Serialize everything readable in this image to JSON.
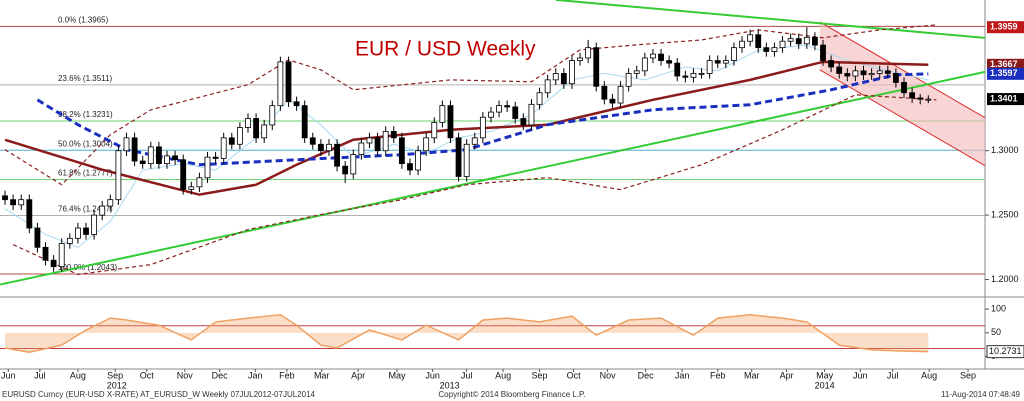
{
  "chart_data": {
    "type": "candlestick",
    "title": "EUR / USD Weekly",
    "xlim": [
      -0.62,
      121
    ],
    "ylim": [
      1.188,
      1.417
    ],
    "xticks": [
      {
        "value": 0.4,
        "label": "Jun"
      },
      {
        "value": 4.3,
        "label": "Jul"
      },
      {
        "value": 9.0,
        "label": "Aug"
      },
      {
        "value": 13.6,
        "label": "Sep"
      },
      {
        "value": 17.5,
        "label": "Oct"
      },
      {
        "value": 22.2,
        "label": "Nov"
      },
      {
        "value": 26.5,
        "label": "Dec"
      },
      {
        "value": 30.9,
        "label": "Jan"
      },
      {
        "value": 34.8,
        "label": "Feb"
      },
      {
        "value": 39.1,
        "label": "Mar"
      },
      {
        "value": 43.6,
        "label": "Apr"
      },
      {
        "value": 48.4,
        "label": "May"
      },
      {
        "value": 52.8,
        "label": "Jun"
      },
      {
        "value": 57.0,
        "label": "Jul"
      },
      {
        "value": 61.5,
        "label": "Aug"
      },
      {
        "value": 66.0,
        "label": "Sep"
      },
      {
        "value": 70.2,
        "label": "Oct"
      },
      {
        "value": 74.4,
        "label": "Nov"
      },
      {
        "value": 79.1,
        "label": "Dec"
      },
      {
        "value": 83.6,
        "label": "Jan"
      },
      {
        "value": 88.0,
        "label": "Feb"
      },
      {
        "value": 92.2,
        "label": "Mar"
      },
      {
        "value": 96.5,
        "label": "Apr"
      },
      {
        "value": 101.2,
        "label": "May"
      },
      {
        "value": 105.6,
        "label": "Jun"
      },
      {
        "value": 109.6,
        "label": "Jul"
      },
      {
        "value": 114.1,
        "label": "Aug"
      },
      {
        "value": 118.9,
        "label": "Sep"
      }
    ],
    "year_ticks": [
      {
        "value": 13.8,
        "label": "2012"
      },
      {
        "value": 54.9,
        "label": "2013"
      },
      {
        "value": 101.2,
        "label": "2014"
      }
    ],
    "yticks": [
      {
        "value": 1.2,
        "label": "1.2000"
      },
      {
        "value": 1.25,
        "label": "1.2500"
      },
      {
        "value": 1.3,
        "label": "1.3000"
      }
    ],
    "up_color": "#ffffff",
    "down_color": "#000000",
    "open": [
      1.265,
      1.262,
      1.258,
      1.262,
      1.24,
      1.225,
      1.215,
      1.21,
      1.228,
      1.232,
      1.24,
      1.235,
      1.25,
      1.257,
      1.262,
      1.3,
      1.31,
      1.292,
      1.29,
      1.303,
      1.29,
      1.296,
      1.293,
      1.27,
      1.272,
      1.279,
      1.295,
      1.294,
      1.31,
      1.305,
      1.318,
      1.325,
      1.31,
      1.32,
      1.335,
      1.369,
      1.338,
      1.335,
      1.31,
      1.305,
      1.3,
      1.305,
      1.288,
      1.282,
      1.297,
      1.306,
      1.31,
      1.3,
      1.315,
      1.31,
      1.29,
      1.285,
      1.3,
      1.31,
      1.322,
      1.335,
      1.31,
      1.28,
      1.305,
      1.31,
      1.326,
      1.33,
      1.335,
      1.334,
      1.325,
      1.32,
      1.336,
      1.345,
      1.355,
      1.36,
      1.352,
      1.37,
      1.372,
      1.38,
      1.35,
      1.34,
      1.337,
      1.35,
      1.36,
      1.362,
      1.372,
      1.375,
      1.37,
      1.368,
      1.358,
      1.357,
      1.36,
      1.36,
      1.37,
      1.368,
      1.37,
      1.38,
      1.385,
      1.39,
      1.38,
      1.377,
      1.38,
      1.385,
      1.387,
      1.383,
      1.388,
      1.382,
      1.37,
      1.365,
      1.36,
      1.358,
      1.362,
      1.359,
      1.36,
      1.362,
      1.36,
      1.353,
      1.345,
      1.341,
      1.34
    ],
    "high": [
      1.269,
      1.266,
      1.266,
      1.266,
      1.244,
      1.229,
      1.219,
      1.232,
      1.236,
      1.244,
      1.244,
      1.254,
      1.261,
      1.266,
      1.304,
      1.314,
      1.314,
      1.296,
      1.307,
      1.307,
      1.3,
      1.3,
      1.297,
      1.276,
      1.283,
      1.299,
      1.299,
      1.314,
      1.314,
      1.322,
      1.329,
      1.329,
      1.324,
      1.339,
      1.373,
      1.373,
      1.342,
      1.339,
      1.314,
      1.309,
      1.309,
      1.309,
      1.292,
      1.301,
      1.31,
      1.314,
      1.314,
      1.319,
      1.319,
      1.314,
      1.294,
      1.304,
      1.314,
      1.326,
      1.339,
      1.339,
      1.314,
      1.309,
      1.314,
      1.33,
      1.334,
      1.339,
      1.339,
      1.338,
      1.329,
      1.34,
      1.349,
      1.359,
      1.364,
      1.364,
      1.374,
      1.376,
      1.386,
      1.384,
      1.354,
      1.344,
      1.354,
      1.364,
      1.366,
      1.376,
      1.379,
      1.379,
      1.374,
      1.372,
      1.362,
      1.364,
      1.364,
      1.374,
      1.374,
      1.374,
      1.384,
      1.389,
      1.394,
      1.394,
      1.384,
      1.384,
      1.389,
      1.391,
      1.391,
      1.396,
      1.392,
      1.386,
      1.374,
      1.369,
      1.364,
      1.366,
      1.366,
      1.364,
      1.366,
      1.366,
      1.364,
      1.357,
      1.349,
      1.344,
      1.343
    ],
    "low": [
      1.258,
      1.254,
      1.254,
      1.236,
      1.221,
      1.211,
      1.206,
      1.206,
      1.224,
      1.228,
      1.231,
      1.231,
      1.246,
      1.253,
      1.258,
      1.296,
      1.288,
      1.286,
      1.286,
      1.286,
      1.286,
      1.289,
      1.266,
      1.266,
      1.268,
      1.275,
      1.29,
      1.29,
      1.301,
      1.301,
      1.314,
      1.306,
      1.306,
      1.316,
      1.331,
      1.334,
      1.331,
      1.306,
      1.301,
      1.296,
      1.296,
      1.284,
      1.275,
      1.278,
      1.293,
      1.302,
      1.296,
      1.296,
      1.306,
      1.286,
      1.281,
      1.281,
      1.296,
      1.306,
      1.318,
      1.306,
      1.276,
      1.276,
      1.301,
      1.306,
      1.322,
      1.326,
      1.33,
      1.321,
      1.316,
      1.316,
      1.332,
      1.341,
      1.351,
      1.348,
      1.348,
      1.366,
      1.368,
      1.346,
      1.336,
      1.333,
      1.333,
      1.346,
      1.356,
      1.358,
      1.368,
      1.366,
      1.364,
      1.354,
      1.353,
      1.353,
      1.356,
      1.356,
      1.364,
      1.364,
      1.366,
      1.376,
      1.381,
      1.376,
      1.373,
      1.373,
      1.376,
      1.381,
      1.379,
      1.379,
      1.378,
      1.366,
      1.361,
      1.356,
      1.354,
      1.354,
      1.355,
      1.355,
      1.356,
      1.356,
      1.349,
      1.341,
      1.337,
      1.336,
      1.337
    ],
    "close": [
      1.262,
      1.258,
      1.262,
      1.24,
      1.225,
      1.215,
      1.21,
      1.228,
      1.232,
      1.24,
      1.235,
      1.25,
      1.257,
      1.262,
      1.3,
      1.31,
      1.292,
      1.29,
      1.303,
      1.29,
      1.296,
      1.293,
      1.27,
      1.272,
      1.279,
      1.295,
      1.294,
      1.31,
      1.305,
      1.318,
      1.325,
      1.31,
      1.32,
      1.335,
      1.369,
      1.338,
      1.335,
      1.31,
      1.305,
      1.3,
      1.305,
      1.288,
      1.282,
      1.297,
      1.306,
      1.31,
      1.3,
      1.315,
      1.31,
      1.29,
      1.285,
      1.3,
      1.31,
      1.322,
      1.335,
      1.31,
      1.28,
      1.305,
      1.31,
      1.326,
      1.33,
      1.335,
      1.334,
      1.325,
      1.32,
      1.336,
      1.345,
      1.355,
      1.36,
      1.352,
      1.37,
      1.372,
      1.38,
      1.35,
      1.34,
      1.337,
      1.35,
      1.36,
      1.362,
      1.372,
      1.375,
      1.37,
      1.368,
      1.358,
      1.357,
      1.36,
      1.36,
      1.37,
      1.368,
      1.37,
      1.38,
      1.385,
      1.39,
      1.38,
      1.377,
      1.38,
      1.385,
      1.387,
      1.383,
      1.388,
      1.382,
      1.37,
      1.365,
      1.36,
      1.358,
      1.362,
      1.359,
      1.36,
      1.362,
      1.36,
      1.353,
      1.345,
      1.341,
      1.34,
      1.34
    ],
    "fib_levels": [
      {
        "value": 1.3965,
        "label": "0.0% (1.3965)",
        "color": "#b04848"
      },
      {
        "value": 1.3511,
        "label": "23.6% (1.3511)",
        "color": "#b0b0b0"
      },
      {
        "value": 1.3231,
        "label": "38.2% (1.3231)",
        "color": "#6cd06c"
      },
      {
        "value": 1.3004,
        "label": "50.0% (1.3004)",
        "color": "#50b0d0"
      },
      {
        "value": 1.2777,
        "label": "61.8% (1.2777)",
        "color": "#6cd06c"
      },
      {
        "value": 1.2497,
        "label": "76.4% (1.2497)",
        "color": "#b0b0b0"
      },
      {
        "value": 1.2043,
        "label": "100.0% (1.2043)",
        "color": "#b04848"
      }
    ],
    "overlays": [
      {
        "color": "#a8d8f0",
        "style": "solid",
        "x": [
          0,
          5,
          9,
          13,
          17,
          22,
          26,
          31,
          35,
          39,
          43,
          48,
          52,
          56,
          60,
          65,
          70,
          74,
          79,
          84,
          88,
          93,
          99,
          104,
          109,
          114
        ],
        "values": [
          1.255,
          1.235,
          1.225,
          1.245,
          1.285,
          1.29,
          1.285,
          1.31,
          1.34,
          1.32,
          1.295,
          1.305,
          1.298,
          1.31,
          1.315,
          1.328,
          1.355,
          1.36,
          1.355,
          1.365,
          1.362,
          1.378,
          1.382,
          1.37,
          1.362,
          1.355
        ]
      },
      {
        "color": "#8b2020",
        "style": "dashed",
        "x": [
          0,
          7,
          13,
          18,
          30,
          35,
          39,
          43,
          55,
          65,
          71,
          78,
          86,
          93,
          101,
          108,
          115
        ],
        "values": [
          1.3008,
          1.2736,
          1.3124,
          1.3318,
          1.3512,
          1.3705,
          1.3628,
          1.3473,
          1.355,
          1.3535,
          1.3783,
          1.3822,
          1.386,
          1.3938,
          1.3877,
          1.3938,
          1.3977
        ]
      },
      {
        "color": "#8b2020",
        "style": "dashed",
        "x": [
          1,
          9,
          18,
          30,
          39,
          49,
          57,
          67,
          76,
          86,
          96,
          105,
          115
        ],
        "values": [
          1.2271,
          1.2039,
          1.2116,
          1.2388,
          1.2504,
          1.262,
          1.2736,
          1.2791,
          1.2698,
          1.2891,
          1.3163,
          1.3434,
          1.3395
        ]
      },
      {
        "color": "#8b1a1a",
        "style": "solid-thick",
        "x": [
          0,
          12,
          24,
          31,
          36,
          43,
          55,
          67,
          80,
          92,
          101,
          114
        ],
        "values": [
          1.3085,
          1.2853,
          1.2659,
          1.2736,
          1.2891,
          1.3085,
          1.3163,
          1.3202,
          1.3395,
          1.355,
          1.369,
          1.3667
        ]
      },
      {
        "color": "#1a2fc0",
        "style": "dashed-thick",
        "x": [
          4,
          9,
          15,
          24,
          36,
          49,
          57,
          67,
          80,
          92,
          102,
          110,
          114
        ],
        "values": [
          1.3395,
          1.3202,
          1.3008,
          1.2891,
          1.293,
          1.2969,
          1.3008,
          1.3202,
          1.3318,
          1.3357,
          1.3473,
          1.3589,
          1.3597
        ]
      }
    ],
    "trendlines": [
      {
        "color": "#33cc33",
        "x": [
          -0.6,
          121
        ],
        "values": [
          1.1961,
          1.3612
        ]
      },
      {
        "color": "#33cc33",
        "x": [
          68,
          121
        ],
        "values": [
          1.4171,
          1.3876
        ]
      }
    ],
    "channel": {
      "color": "#dd2a2a",
      "fill": "#f4b8b8",
      "upper": {
        "x": [
          100.6,
          121
        ],
        "values": [
          1.4,
          1.3256
        ]
      },
      "lower": {
        "x": [
          100.6,
          121
        ],
        "values": [
          1.3628,
          1.2884
        ]
      }
    },
    "price_tags": [
      {
        "value": 1.3959,
        "color": "#c01818"
      },
      {
        "value": 1.3667,
        "color": "#8b1a1a"
      },
      {
        "value": 1.3597,
        "color": "#1a2fc0"
      },
      {
        "value": 1.3401,
        "color": "#000000"
      }
    ],
    "oscillator": {
      "ylim": [
        -20,
        115
      ],
      "yticks": [
        0,
        50,
        100
      ],
      "levels": [
        65,
        17
      ],
      "level_color": "#c04040",
      "color": "#f0a060",
      "x": [
        0,
        3,
        7,
        10,
        13,
        15,
        19,
        23,
        26,
        30,
        34,
        36,
        39,
        41,
        45,
        49,
        52,
        56,
        59,
        62,
        66,
        70,
        73,
        77,
        81,
        85,
        88,
        92,
        96,
        99,
        103,
        107,
        110,
        114
      ],
      "values": [
        18,
        9,
        24,
        56,
        81,
        77,
        66,
        35,
        73,
        81,
        88,
        66,
        24,
        18,
        56,
        35,
        66,
        35,
        77,
        81,
        73,
        85,
        45,
        77,
        81,
        45,
        81,
        88,
        81,
        73,
        24,
        14,
        12,
        10.2731
      ]
    }
  },
  "footer": {
    "left": "EURUSD Curncy (EUR-USD X-RATE) AT_EURUSD_W  Weekly 07JUL2012-07JUL2014",
    "center": "Copyright© 2014 Bloomberg Finance L.P.",
    "right": "11-Aug-2014 07:48:49"
  }
}
